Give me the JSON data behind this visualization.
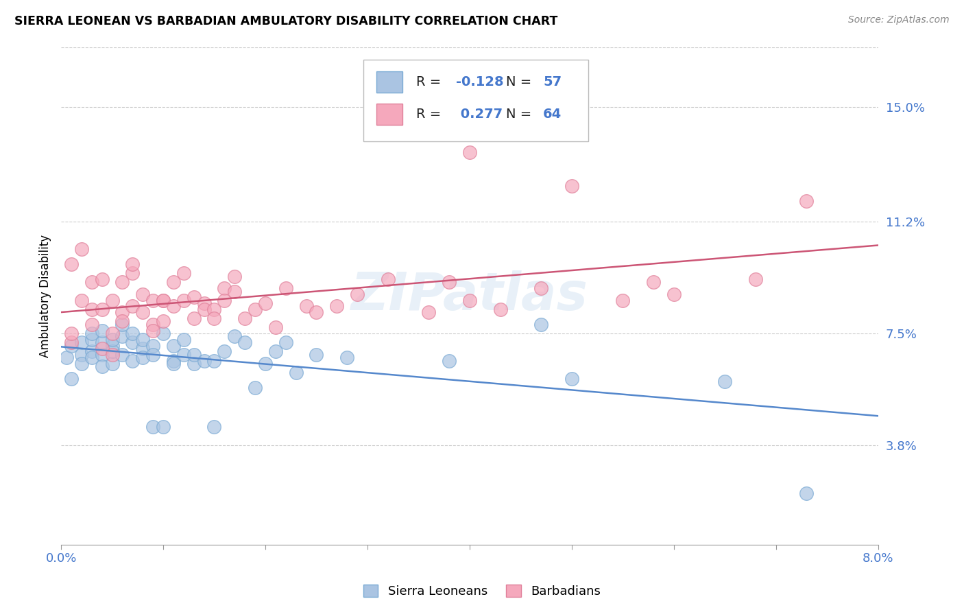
{
  "title": "SIERRA LEONEAN VS BARBADIAN AMBULATORY DISABILITY CORRELATION CHART",
  "source": "Source: ZipAtlas.com",
  "ylabel": "Ambulatory Disability",
  "ytick_labels": [
    "3.8%",
    "7.5%",
    "11.2%",
    "15.0%"
  ],
  "ytick_values": [
    0.038,
    0.075,
    0.112,
    0.15
  ],
  "xlim": [
    0.0,
    0.08
  ],
  "ylim": [
    0.005,
    0.17
  ],
  "sierra_R": -0.128,
  "sierra_N": 57,
  "barbadian_R": 0.277,
  "barbadian_N": 64,
  "sierra_color": "#aac4e2",
  "barbadian_color": "#f5a8bc",
  "sierra_edge_color": "#7aaad4",
  "barbadian_edge_color": "#e0809a",
  "sierra_line_color": "#5588cc",
  "barbadian_line_color": "#cc5575",
  "legend_label_sierra": "Sierra Leoneans",
  "legend_label_barbadian": "Barbadians",
  "blue_text_color": "#4477cc",
  "sierra_x": [
    0.0005,
    0.001,
    0.001,
    0.002,
    0.002,
    0.002,
    0.003,
    0.003,
    0.003,
    0.003,
    0.004,
    0.004,
    0.004,
    0.004,
    0.005,
    0.005,
    0.005,
    0.005,
    0.006,
    0.006,
    0.006,
    0.007,
    0.007,
    0.007,
    0.008,
    0.008,
    0.008,
    0.009,
    0.009,
    0.009,
    0.01,
    0.01,
    0.011,
    0.011,
    0.011,
    0.012,
    0.012,
    0.013,
    0.013,
    0.014,
    0.015,
    0.015,
    0.016,
    0.017,
    0.018,
    0.019,
    0.02,
    0.021,
    0.022,
    0.023,
    0.025,
    0.028,
    0.038,
    0.047,
    0.05,
    0.065,
    0.073
  ],
  "sierra_y": [
    0.067,
    0.06,
    0.071,
    0.068,
    0.065,
    0.072,
    0.069,
    0.073,
    0.067,
    0.075,
    0.072,
    0.068,
    0.064,
    0.076,
    0.071,
    0.065,
    0.069,
    0.073,
    0.074,
    0.068,
    0.078,
    0.072,
    0.066,
    0.075,
    0.07,
    0.073,
    0.067,
    0.071,
    0.044,
    0.068,
    0.044,
    0.075,
    0.066,
    0.071,
    0.065,
    0.068,
    0.073,
    0.065,
    0.068,
    0.066,
    0.044,
    0.066,
    0.069,
    0.074,
    0.072,
    0.057,
    0.065,
    0.069,
    0.072,
    0.062,
    0.068,
    0.067,
    0.066,
    0.078,
    0.06,
    0.059,
    0.022
  ],
  "barbadian_x": [
    0.001,
    0.001,
    0.001,
    0.002,
    0.002,
    0.003,
    0.003,
    0.003,
    0.004,
    0.004,
    0.004,
    0.005,
    0.005,
    0.005,
    0.006,
    0.006,
    0.006,
    0.007,
    0.007,
    0.007,
    0.008,
    0.008,
    0.009,
    0.009,
    0.009,
    0.01,
    0.01,
    0.01,
    0.011,
    0.011,
    0.012,
    0.012,
    0.013,
    0.013,
    0.014,
    0.014,
    0.015,
    0.015,
    0.016,
    0.016,
    0.017,
    0.017,
    0.018,
    0.019,
    0.02,
    0.021,
    0.022,
    0.024,
    0.025,
    0.027,
    0.029,
    0.032,
    0.036,
    0.038,
    0.04,
    0.043,
    0.047,
    0.05,
    0.055,
    0.058,
    0.04,
    0.06,
    0.068,
    0.073
  ],
  "barbadian_y": [
    0.072,
    0.098,
    0.075,
    0.103,
    0.086,
    0.078,
    0.083,
    0.092,
    0.07,
    0.093,
    0.083,
    0.068,
    0.086,
    0.075,
    0.092,
    0.082,
    0.079,
    0.095,
    0.084,
    0.098,
    0.088,
    0.082,
    0.078,
    0.086,
    0.076,
    0.086,
    0.079,
    0.086,
    0.084,
    0.092,
    0.086,
    0.095,
    0.08,
    0.087,
    0.085,
    0.083,
    0.083,
    0.08,
    0.09,
    0.086,
    0.089,
    0.094,
    0.08,
    0.083,
    0.085,
    0.077,
    0.09,
    0.084,
    0.082,
    0.084,
    0.088,
    0.093,
    0.082,
    0.092,
    0.086,
    0.083,
    0.09,
    0.124,
    0.086,
    0.092,
    0.135,
    0.088,
    0.093,
    0.119
  ]
}
